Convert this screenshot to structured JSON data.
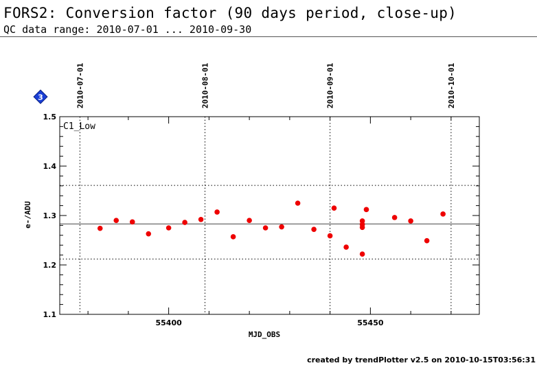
{
  "header": {
    "title": "FORS2: Conversion factor (90 days period, close-up)",
    "subtitle": "QC data range: 2010-07-01 ... 2010-09-30"
  },
  "footer": "created by trendPlotter v2.5 on 2010-10-15T03:56:31",
  "badge": {
    "label": "3",
    "color": "#1a3fd6",
    "icon": "diamond-icon"
  },
  "colors": {
    "points": "#ee0000",
    "frame": "#000000"
  },
  "chart_data": {
    "type": "scatter",
    "panel_label": "C1_Low",
    "xlabel": "MJD_OBS",
    "ylabel": "e-/ADU",
    "xlim": [
      55373,
      55477
    ],
    "ylim": [
      1.1,
      1.5
    ],
    "xticks": [
      55400,
      55450
    ],
    "yticks": [
      1.1,
      1.2,
      1.3,
      1.4,
      1.5
    ],
    "date_markers": [
      {
        "mjd": 55378,
        "label": "2010-07-01"
      },
      {
        "mjd": 55409,
        "label": "2010-08-01"
      },
      {
        "mjd": 55440,
        "label": "2010-09-01"
      },
      {
        "mjd": 55470,
        "label": "2010-10-01"
      }
    ],
    "reference_lines": {
      "mean": 1.283,
      "upper": 1.361,
      "lower": 1.212
    },
    "points": [
      {
        "x": 55383,
        "y": 1.274
      },
      {
        "x": 55387,
        "y": 1.29
      },
      {
        "x": 55391,
        "y": 1.287
      },
      {
        "x": 55395,
        "y": 1.263
      },
      {
        "x": 55400,
        "y": 1.275
      },
      {
        "x": 55404,
        "y": 1.286
      },
      {
        "x": 55408,
        "y": 1.292
      },
      {
        "x": 55412,
        "y": 1.307
      },
      {
        "x": 55416,
        "y": 1.257
      },
      {
        "x": 55420,
        "y": 1.29
      },
      {
        "x": 55424,
        "y": 1.275
      },
      {
        "x": 55428,
        "y": 1.277
      },
      {
        "x": 55432,
        "y": 1.325
      },
      {
        "x": 55436,
        "y": 1.272
      },
      {
        "x": 55440,
        "y": 1.259
      },
      {
        "x": 55441,
        "y": 1.315
      },
      {
        "x": 55444,
        "y": 1.236
      },
      {
        "x": 55448,
        "y": 1.222
      },
      {
        "x": 55448,
        "y": 1.276
      },
      {
        "x": 55448,
        "y": 1.282
      },
      {
        "x": 55448,
        "y": 1.289
      },
      {
        "x": 55449,
        "y": 1.312
      },
      {
        "x": 55456,
        "y": 1.296
      },
      {
        "x": 55460,
        "y": 1.289
      },
      {
        "x": 55464,
        "y": 1.249
      },
      {
        "x": 55468,
        "y": 1.303
      }
    ]
  }
}
